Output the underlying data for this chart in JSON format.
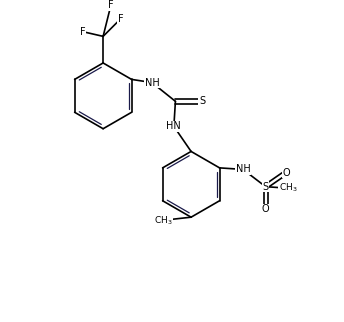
{
  "bg_color": "#ffffff",
  "line_color": "#000000",
  "line_color2": "#1a1a4a",
  "text_color": "#000000",
  "figsize": [
    3.44,
    3.22
  ],
  "dpi": 100,
  "xlim": [
    0,
    10
  ],
  "ylim": [
    0,
    10
  ]
}
